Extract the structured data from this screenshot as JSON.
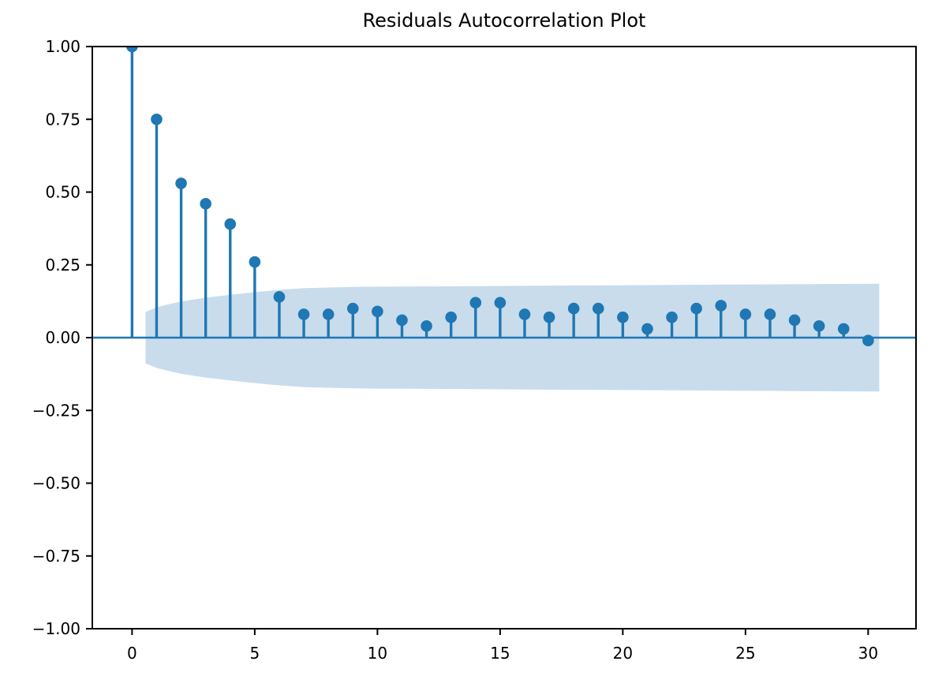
{
  "title": "Residuals Autocorrelation Plot",
  "colors": {
    "stem": "#1f77b4",
    "marker": "#1f77b4",
    "zero_line": "#1f77b4",
    "confidence_band": "#c8dcec",
    "axis": "#000000",
    "background": "#ffffff"
  },
  "chart_data": {
    "type": "stem",
    "chart_kind": "autocorrelation-of-residuals",
    "title": "Residuals Autocorrelation Plot",
    "xlabel": "",
    "ylabel": "",
    "x": [
      0,
      1,
      2,
      3,
      4,
      5,
      6,
      7,
      8,
      9,
      10,
      11,
      12,
      13,
      14,
      15,
      16,
      17,
      18,
      19,
      20,
      21,
      22,
      23,
      24,
      25,
      26,
      27,
      28,
      29,
      30
    ],
    "values": [
      1.0,
      0.75,
      0.53,
      0.46,
      0.39,
      0.26,
      0.14,
      0.08,
      0.08,
      0.1,
      0.09,
      0.06,
      0.04,
      0.07,
      0.12,
      0.12,
      0.08,
      0.07,
      0.1,
      0.1,
      0.07,
      0.03,
      0.07,
      0.1,
      0.11,
      0.08,
      0.08,
      0.06,
      0.04,
      0.03,
      -0.01
    ],
    "confidence_band": {
      "description": "shaded confidence interval centered on zero",
      "x": [
        0.55,
        1.0,
        1.5,
        2.0,
        2.5,
        3.0,
        4.0,
        5.0,
        6.0,
        7.0,
        8.0,
        9.0,
        10.0,
        12.0,
        14.0,
        16.0,
        18.0,
        20.0,
        22.0,
        24.0,
        26.0,
        28.0,
        30.0,
        30.45
      ],
      "half_width": [
        0.088,
        0.104,
        0.115,
        0.124,
        0.131,
        0.137,
        0.147,
        0.156,
        0.164,
        0.17,
        0.172,
        0.174,
        0.175,
        0.176,
        0.177,
        0.178,
        0.179,
        0.18,
        0.181,
        0.182,
        0.183,
        0.184,
        0.185,
        0.185
      ]
    },
    "xticks": [
      0,
      5,
      10,
      15,
      20,
      25,
      30
    ],
    "xtick_labels": [
      "0",
      "5",
      "10",
      "15",
      "20",
      "25",
      "30"
    ],
    "yticks": [
      1.0,
      0.75,
      0.5,
      0.25,
      0.0,
      -0.25,
      -0.5,
      -0.75,
      -1.0
    ],
    "ytick_labels": [
      "1.00",
      "0.75",
      "0.50",
      "0.25",
      "0.00",
      "−0.25",
      "−0.50",
      "−0.75",
      "−1.00"
    ],
    "xlim": [
      -1.62,
      31.95
    ],
    "ylim": [
      -1.0,
      1.0
    ],
    "grid": false,
    "legend": null,
    "zero_line": true
  }
}
